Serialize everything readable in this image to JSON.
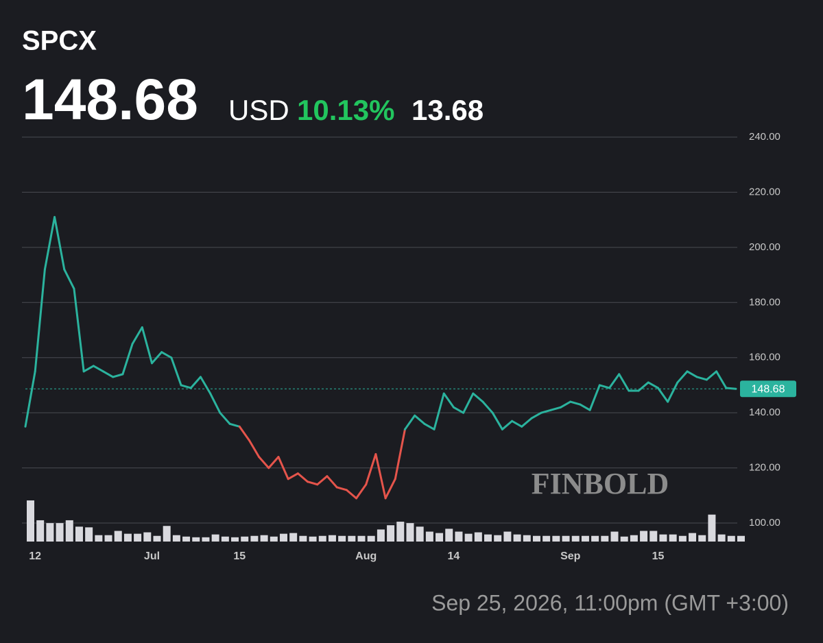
{
  "chart_data": {
    "type": "line",
    "symbol": "SPCX",
    "price": 148.68,
    "currency": "USD",
    "change_pct": "10.13%",
    "change": 13.68,
    "timestamp": "Sep 25, 2026, 11:00pm (GMT +3:00)",
    "watermark": "FINBOLD",
    "categories": [
      null,
      "12",
      null,
      null,
      null,
      null,
      null,
      null,
      null,
      null,
      null,
      null,
      null,
      "Jul",
      null,
      null,
      null,
      null,
      null,
      null,
      null,
      null,
      "15",
      null,
      null,
      null,
      null,
      null,
      null,
      null,
      null,
      null,
      null,
      null,
      null,
      "Aug",
      null,
      null,
      null,
      null,
      null,
      null,
      null,
      null,
      "14",
      null,
      null,
      null,
      null,
      null,
      null,
      null,
      null,
      null,
      null,
      null,
      "Sep",
      null,
      null,
      null,
      null,
      null,
      null,
      null,
      null,
      "15",
      null,
      null,
      null,
      null,
      null,
      null,
      null,
      null
    ],
    "series": [
      {
        "name": "SPCX",
        "color": "#2bb39e",
        "down_color": "#e5544b",
        "values": [
          135,
          155,
          192,
          211,
          192,
          185,
          155,
          157,
          155,
          153,
          154,
          165,
          171,
          158,
          162,
          160,
          150,
          149,
          153,
          147,
          140,
          136,
          135,
          130,
          124,
          120,
          124,
          116,
          118,
          115,
          114,
          117,
          113,
          112,
          109,
          114,
          125,
          109,
          116,
          134,
          139,
          136,
          134,
          147,
          142,
          140,
          147,
          144,
          140,
          134,
          137,
          135,
          138,
          140,
          141,
          142,
          144,
          143,
          141,
          150,
          149,
          154,
          148,
          148,
          151,
          149,
          144,
          151,
          155,
          153,
          152,
          155,
          149,
          148.68
        ]
      }
    ],
    "volume": [
      58,
      30,
      26,
      26,
      30,
      21,
      20,
      9,
      9,
      15,
      11,
      11,
      13,
      8,
      22,
      9,
      7,
      6,
      6,
      10,
      7,
      6,
      7,
      8,
      9,
      7,
      11,
      12,
      8,
      7,
      8,
      9,
      8,
      8,
      8,
      8,
      17,
      23,
      28,
      26,
      21,
      14,
      12,
      18,
      14,
      11,
      13,
      10,
      9,
      14,
      10,
      9,
      8,
      8,
      8,
      8,
      8,
      8,
      8,
      8,
      14,
      7,
      9,
      15,
      15,
      10,
      10,
      8,
      12,
      9,
      38,
      10,
      8,
      8
    ],
    "volume_color": "#d9d9de",
    "ylim": [
      93.3,
      240
    ],
    "yticks": [
      {
        "value": 100,
        "label": "100.00"
      },
      {
        "value": 120,
        "label": "120.00"
      },
      {
        "value": 140,
        "label": "140.00"
      },
      {
        "value": 160,
        "label": "160.00"
      },
      {
        "value": 180,
        "label": "180.00"
      },
      {
        "value": 200,
        "label": "200.00"
      },
      {
        "value": 220,
        "label": "220.00"
      },
      {
        "value": 240,
        "label": "240.00"
      }
    ],
    "grid": true
  }
}
